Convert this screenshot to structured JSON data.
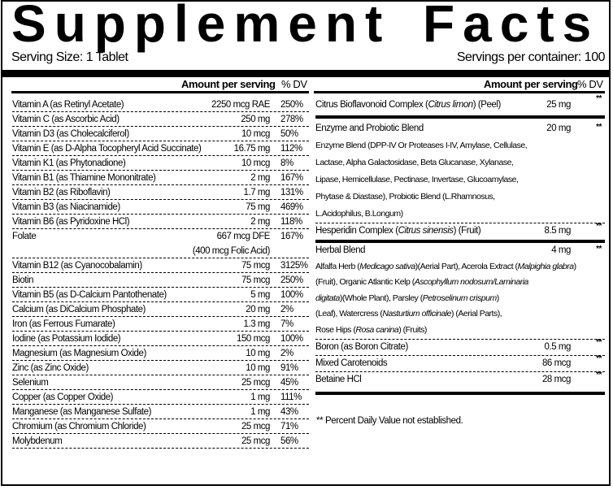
{
  "title": "Supplement Facts",
  "serving_size": "Serving Size:  1 Tablet",
  "servings_per_container": "Servings per container: 100",
  "headers": {
    "amount": "Amount per serving",
    "dv": "% DV"
  },
  "left_rows": [
    {
      "name": "Vitamin A (as Retinyl Acetate)",
      "amount": "2250 mcg RAE",
      "dv": "250%"
    },
    {
      "name": "Vitamin C (as Ascorbic Acid)",
      "amount": "250 mg",
      "dv": "278%"
    },
    {
      "name": "Vitamin D3 (as Cholecalciferol)",
      "amount": "10 mcg",
      "dv": "50%"
    },
    {
      "name": "Vitamin E (as D-Alpha Tocopheryl Acid Succinate)",
      "amount": "16.75 mg",
      "dv": "112%"
    },
    {
      "name": "Vitamin K1 (as Phytonadione)",
      "amount": "10 mcg",
      "dv": "8%"
    },
    {
      "name": "Vitamin B1 (as Thiamine Mononitrate)",
      "amount": "2 mg",
      "dv": "167%"
    },
    {
      "name": "Vitamin B2 (as Riboflavin)",
      "amount": "1.7 mg",
      "dv": "131%"
    },
    {
      "name": "Vitamin B3 (as Niacinamide)",
      "amount": "75 mg",
      "dv": "469%"
    },
    {
      "name": "Vitamin B6 (as Pyridoxine HCl)",
      "amount": "2 mg",
      "dv": "118%"
    },
    {
      "name": "Folate",
      "amount": "667 mcg DFE",
      "dv": "167%",
      "sub": "(400 mcg Folic Acid)"
    },
    {
      "name": "Vitamin B12 (as Cyanocobalamin)",
      "amount": "75 mcg",
      "dv": "3125%"
    },
    {
      "name": "Biotin",
      "amount": "75 mcg",
      "dv": "250%"
    },
    {
      "name": "Vitamin B5 (as D-Calcium Pantothenate)",
      "amount": "5 mg",
      "dv": "100%"
    },
    {
      "name": "Calcium (as DiCalcium Phosphate)",
      "amount": "20 mg",
      "dv": "2%"
    },
    {
      "name": "Iron (as Ferrous Fumarate)",
      "amount": "1.3 mg",
      "dv": "7%"
    },
    {
      "name": "Iodine (as Potassium Iodide)",
      "amount": "150 mcg",
      "dv": "100%"
    },
    {
      "name": "Magnesium (as Magnesium Oxide)",
      "amount": "10 mg",
      "dv": "2%"
    },
    {
      "name": "Zinc (as Zinc Oxide)",
      "amount": "10 mg",
      "dv": "91%"
    },
    {
      "name": "Selenium",
      "amount": "25 mcg",
      "dv": "45%"
    },
    {
      "name": "Copper (as Copper Oxide)",
      "amount": "1 mg",
      "dv": "111%"
    },
    {
      "name": "Manganese (as Manganese Sulfate)",
      "amount": "1 mg",
      "dv": "43%"
    },
    {
      "name": "Chromium (as Chromium Chloride)",
      "amount": "25 mcg",
      "dv": "71%"
    },
    {
      "name": "Molybdenum",
      "amount": "25 mcg",
      "dv": "56%"
    }
  ],
  "right": {
    "citrus": {
      "name": [
        "Citrus Bioflavonoid Complex (",
        "Citrus limon",
        ") (Peel)"
      ],
      "amount": "25 mg",
      "dv": "**"
    },
    "enzyme": {
      "name": "Enzyme and Probiotic Blend",
      "amount": "20 mg",
      "dv": "**",
      "lines": [
        "Enzyme Blend (DPP-IV Or Proteases I-IV, Amylase, Cellulase,",
        "Lactase, Alpha Galactosidase, Beta Glucanase, Xylanase,",
        "Lipase, Hemicellulase, Pectinase, Invertase, Glucoamylase,",
        "Phytase & Diastase), Probiotic Blend (L.Rhamnosus,",
        "L.Acidophilus, B.Longum)"
      ]
    },
    "hesperidin": {
      "name": [
        "Hesperidin Complex (",
        "Citrus sinensis",
        ") (Fruit)"
      ],
      "amount": "8.5 mg",
      "dv": "**"
    },
    "herbal": {
      "name": "Herbal Blend",
      "amount": "4 mg",
      "dv": "**",
      "lines": [
        [
          "Alfalfa Herb (",
          "Medicago sativa",
          ")(Aerial Part), Acerola Extract (",
          "Malpighia glabra",
          ")"
        ],
        [
          "(Fruit), Organic Atlantic Kelp (",
          "Ascophyllum nodosum/Laminaria"
        ],
        [
          "",
          "digitata",
          ")(Whole Plant), Parsley (",
          "Petroselinum crispum",
          ")"
        ],
        [
          "(Leaf), Watercress (",
          "Nasturtium officinale",
          ") (Aerial Parts),"
        ],
        [
          "Rose Hips (",
          "Rosa canina",
          ") (Fruits)"
        ]
      ]
    },
    "others": [
      {
        "name": "Boron (as Boron Citrate)",
        "amount": "0.5 mg",
        "dv": "**"
      },
      {
        "name": "Mixed Carotenoids",
        "amount": "86 mcg",
        "dv": "**"
      },
      {
        "name": "Betaine HCl",
        "amount": "28 mcg",
        "dv": "**"
      }
    ]
  },
  "footnote": "** Percent Daily Value not established."
}
